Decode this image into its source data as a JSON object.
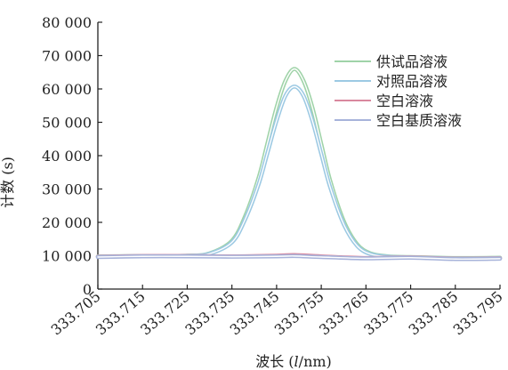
{
  "chart_data": {
    "type": "line",
    "xlabel_prefix": "波长 (",
    "xlabel_var": "l",
    "xlabel_suffix": "/nm)",
    "ylabel": "计数 (s)",
    "xlim": [
      333.705,
      333.795
    ],
    "ylim": [
      0,
      80000
    ],
    "x_ticks": [
      333.705,
      333.715,
      333.725,
      333.735,
      333.745,
      333.755,
      333.765,
      333.775,
      333.785,
      333.795
    ],
    "x_tick_labels": [
      "333.705",
      "333.715",
      "333.725",
      "333.735",
      "333.745",
      "333.755",
      "333.765",
      "333.775",
      "333.785",
      "333.795"
    ],
    "y_ticks": [
      0,
      10000,
      20000,
      30000,
      40000,
      50000,
      60000,
      70000,
      80000
    ],
    "y_tick_labels": [
      "0",
      "10 000",
      "20 000",
      "30 000",
      "40 000",
      "50 000",
      "60 000",
      "70 000",
      "80 000"
    ],
    "legend_position": "top-right",
    "grid": false,
    "series": [
      {
        "name": "供试品溶液",
        "color": "#9fd3a8",
        "x": [
          333.705,
          333.715,
          333.725,
          333.73,
          333.735,
          333.738,
          333.741,
          333.743,
          333.745,
          333.747,
          333.749,
          333.751,
          333.753,
          333.755,
          333.757,
          333.76,
          333.763,
          333.766,
          333.77,
          333.775,
          333.785,
          333.795
        ],
        "y": [
          9800,
          9900,
          10000,
          10700,
          14500,
          22000,
          33500,
          44000,
          54500,
          62500,
          66000,
          62500,
          54500,
          43500,
          32500,
          20500,
          13500,
          10700,
          9800,
          9600,
          9300,
          9400
        ]
      },
      {
        "name": "对照品溶液",
        "color": "#9cc9e3",
        "x": [
          333.705,
          333.715,
          333.725,
          333.73,
          333.735,
          333.738,
          333.741,
          333.743,
          333.745,
          333.747,
          333.749,
          333.751,
          333.753,
          333.755,
          333.757,
          333.76,
          333.763,
          333.766,
          333.77,
          333.775,
          333.785,
          333.795
        ],
        "y": [
          9700,
          9900,
          10000,
          10600,
          14000,
          21000,
          31500,
          41000,
          50500,
          58000,
          60700,
          58000,
          50500,
          40500,
          30500,
          19500,
          13000,
          10500,
          9700,
          9500,
          9200,
          9300
        ]
      },
      {
        "name": "空白溶液",
        "color": "#d9889e",
        "x": [
          333.705,
          333.715,
          333.725,
          333.735,
          333.745,
          333.749,
          333.755,
          333.765,
          333.775,
          333.785,
          333.795
        ],
        "y": [
          9700,
          9900,
          9900,
          9800,
          10000,
          10200,
          9800,
          9300,
          9500,
          9100,
          9200
        ]
      },
      {
        "name": "空白基质溶液",
        "color": "#a7b3da",
        "x": [
          333.705,
          333.715,
          333.725,
          333.735,
          333.745,
          333.749,
          333.755,
          333.765,
          333.775,
          333.785,
          333.795
        ],
        "y": [
          9600,
          9800,
          9800,
          9700,
          9800,
          9900,
          9600,
          9200,
          9400,
          9000,
          9100
        ]
      }
    ]
  }
}
